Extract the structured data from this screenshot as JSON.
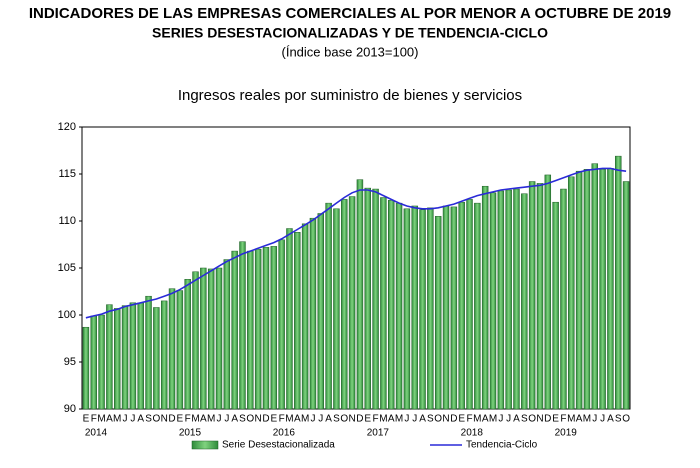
{
  "chart_data": {
    "type": "bar_line",
    "title": "INDICADORES DE LAS EMPRESAS COMERCIALES AL POR MENOR A OCTUBRE DE 2019",
    "subtitle": "SERIES DESESTACIONALIZADAS Y DE TENDENCIA-CICLO",
    "note": "(Índice base 2013=100)",
    "chart_title": "Ingresos reales por suministro de bienes y servicios",
    "categories": [
      "E",
      "F",
      "M",
      "A",
      "M",
      "J",
      "J",
      "A",
      "S",
      "O",
      "N",
      "D",
      "E",
      "F",
      "M",
      "A",
      "M",
      "J",
      "J",
      "A",
      "S",
      "O",
      "N",
      "D",
      "E",
      "F",
      "M",
      "A",
      "M",
      "J",
      "J",
      "A",
      "S",
      "O",
      "N",
      "D",
      "E",
      "F",
      "M",
      "A",
      "M",
      "J",
      "J",
      "A",
      "S",
      "O",
      "N",
      "D",
      "E",
      "F",
      "M",
      "A",
      "M",
      "J",
      "J",
      "A",
      "S",
      "O",
      "N",
      "D",
      "E",
      "F",
      "M",
      "A",
      "M",
      "J",
      "J",
      "A",
      "S",
      "O"
    ],
    "years": [
      "2014",
      "2015",
      "2016",
      "2017",
      "2018",
      "2019"
    ],
    "ylim": [
      90,
      120
    ],
    "yticks": [
      90,
      95,
      100,
      105,
      110,
      115,
      120
    ],
    "series": [
      {
        "name": "Serie Desestacionalizada",
        "color": "#3fae49",
        "type": "bar",
        "values": [
          98.7,
          99.9,
          100.0,
          101.1,
          100.7,
          101.0,
          101.3,
          101.3,
          102.0,
          100.8,
          101.5,
          102.8,
          102.6,
          103.8,
          104.6,
          105.0,
          104.9,
          105.0,
          105.9,
          106.8,
          107.8,
          106.8,
          107.0,
          107.2,
          107.3,
          108.0,
          109.2,
          108.8,
          109.7,
          110.3,
          110.8,
          111.9,
          111.3,
          112.3,
          112.6,
          114.4,
          113.5,
          113.4,
          112.5,
          112.2,
          111.9,
          111.3,
          111.6,
          111.2,
          111.4,
          110.5,
          111.6,
          111.5,
          112.0,
          112.3,
          111.9,
          113.7,
          113.0,
          113.2,
          113.3,
          113.4,
          112.9,
          114.2,
          114.0,
          114.9,
          112.0,
          113.4,
          114.7,
          115.3,
          115.5,
          116.1,
          115.5,
          115.6,
          116.9,
          114.2
        ]
      },
      {
        "name": "Tendencia-Ciclo",
        "color": "#2a2ad8",
        "type": "line",
        "values": [
          99.7,
          99.9,
          100.1,
          100.4,
          100.6,
          100.9,
          101.1,
          101.3,
          101.5,
          101.7,
          102.0,
          102.3,
          102.7,
          103.2,
          103.7,
          104.2,
          104.7,
          105.2,
          105.7,
          106.1,
          106.5,
          106.8,
          107.1,
          107.4,
          107.7,
          108.1,
          108.6,
          109.1,
          109.6,
          110.1,
          110.7,
          111.3,
          111.9,
          112.5,
          113.0,
          113.3,
          113.3,
          113.1,
          112.7,
          112.3,
          111.9,
          111.6,
          111.4,
          111.3,
          111.3,
          111.4,
          111.6,
          111.8,
          112.1,
          112.4,
          112.7,
          112.9,
          113.1,
          113.3,
          113.4,
          113.5,
          113.6,
          113.7,
          113.8,
          114.0,
          114.3,
          114.6,
          114.9,
          115.2,
          115.4,
          115.5,
          115.6,
          115.6,
          115.4,
          115.3
        ]
      }
    ]
  }
}
